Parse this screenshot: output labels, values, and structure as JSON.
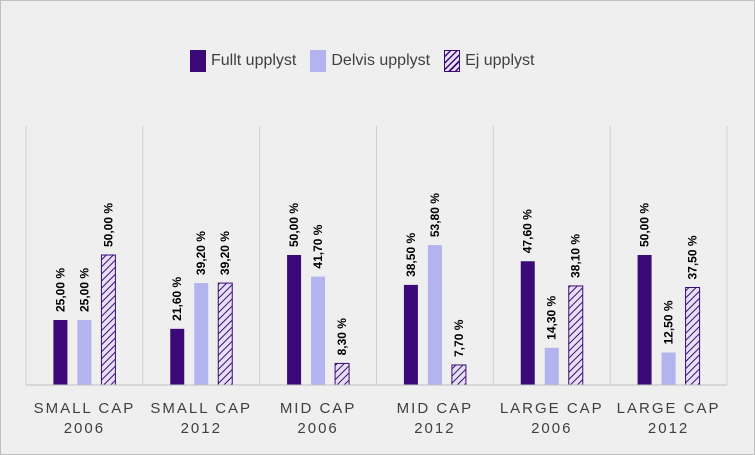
{
  "colors": {
    "fullt": "#3b0a78",
    "delvis": "#b3b3f0",
    "ej_stripe": "#3b0a78",
    "ej_bg": "#e6e0f5",
    "background": "#efefef",
    "grid": "#d0d0d0"
  },
  "legend": [
    {
      "label": "Fullt upplyst",
      "key": "fullt"
    },
    {
      "label": "Delvis upplyst",
      "key": "delvis"
    },
    {
      "label": "Ej upplyst",
      "key": "ej"
    }
  ],
  "chart_data": {
    "type": "bar",
    "title": "",
    "xlabel": "",
    "ylabel": "",
    "ylim": [
      0,
      100
    ],
    "grid": "vertical category separators",
    "legend_position": "top-center",
    "categories": [
      [
        "SMALL CAP",
        "2006"
      ],
      [
        "SMALL CAP",
        "2012"
      ],
      [
        "MID CAP",
        "2006"
      ],
      [
        "MID CAP",
        "2012"
      ],
      [
        "LARGE CAP",
        "2006"
      ],
      [
        "LARGE CAP",
        "2012"
      ]
    ],
    "series": [
      {
        "name": "Fullt upplyst",
        "key": "fullt",
        "values": [
          25.0,
          21.6,
          50.0,
          38.5,
          47.6,
          50.0
        ],
        "labels": [
          "25,00 %",
          "21,60 %",
          "50,00 %",
          "38,50 %",
          "47,60 %",
          "50,00 %"
        ]
      },
      {
        "name": "Delvis upplyst",
        "key": "delvis",
        "values": [
          25.0,
          39.2,
          41.7,
          53.8,
          14.3,
          12.5
        ],
        "labels": [
          "25,00 %",
          "39,20 %",
          "41,70 %",
          "53,80 %",
          "14,30 %",
          "12,50 %"
        ]
      },
      {
        "name": "Ej upplyst",
        "key": "ej",
        "values": [
          50.0,
          39.2,
          8.3,
          7.7,
          38.1,
          37.5
        ],
        "labels": [
          "50,00 %",
          "39,20 %",
          "8,30 %",
          "7,70 %",
          "38,10 %",
          "37,50 %"
        ]
      }
    ]
  }
}
